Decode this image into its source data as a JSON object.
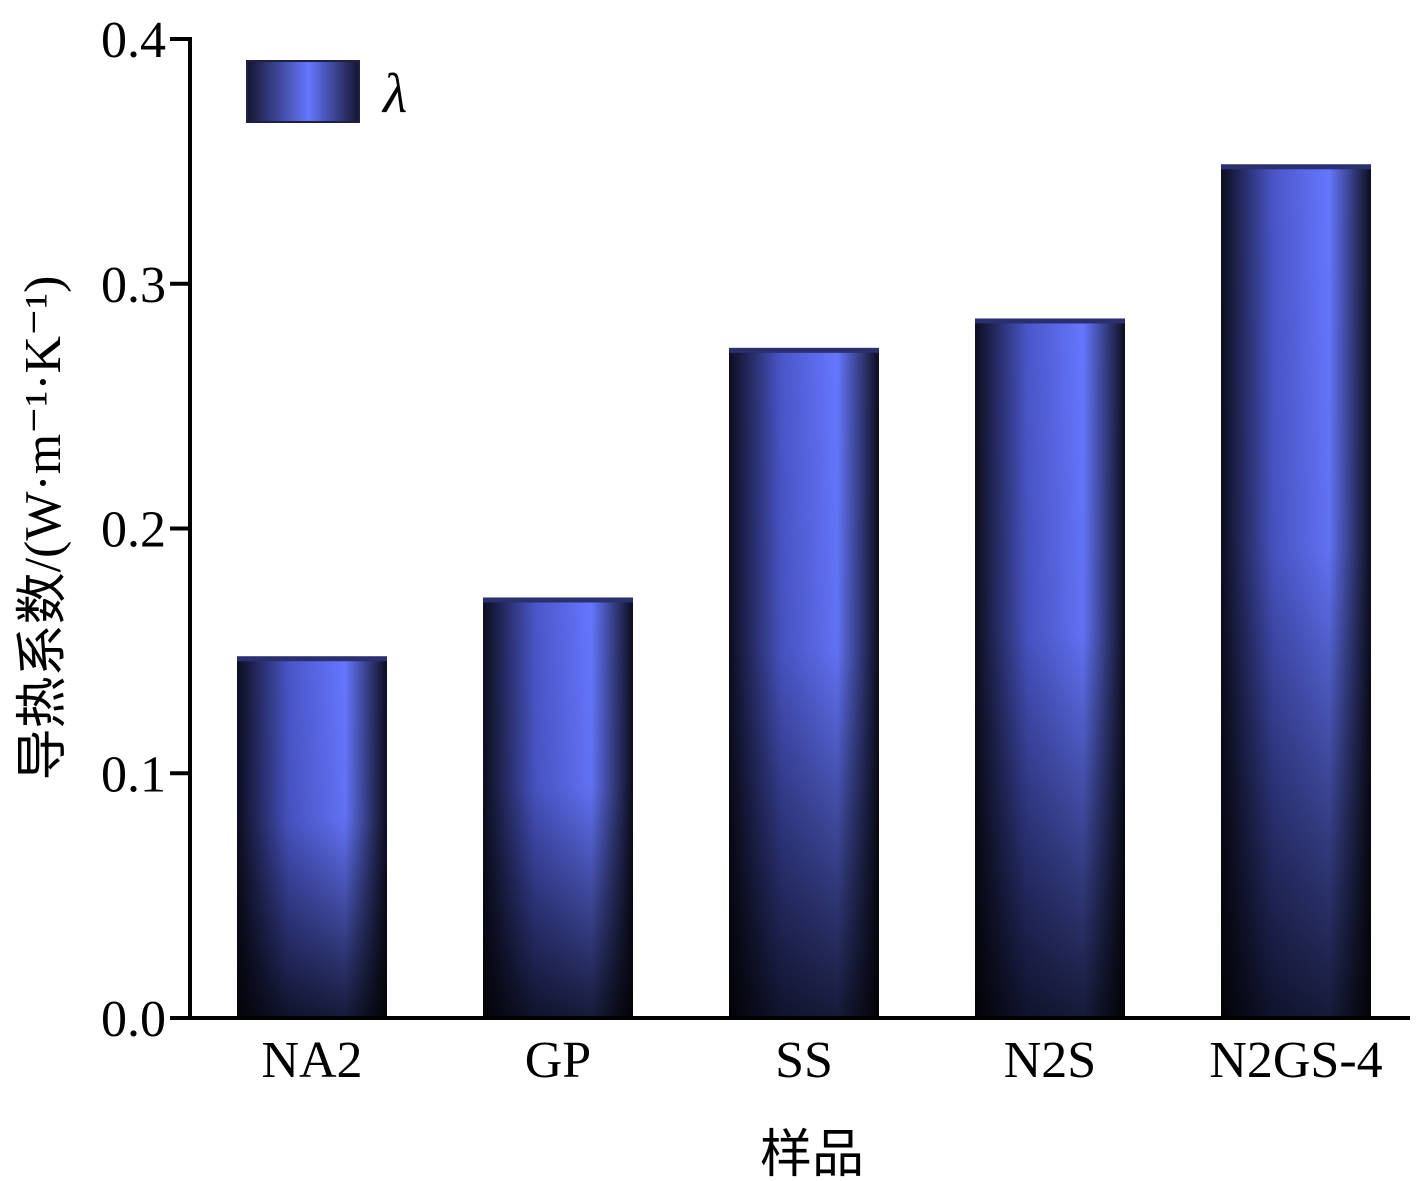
{
  "chart_data": {
    "type": "bar",
    "categories": [
      "NA2",
      "GP",
      "SS",
      "N2S",
      "N2GS-4"
    ],
    "series": [
      {
        "name": "λ",
        "values": [
          0.147,
          0.171,
          0.273,
          0.285,
          0.348
        ]
      }
    ],
    "title": "",
    "xlabel": "样品",
    "ylabel": "导热系数/(W·m⁻¹·K⁻¹)",
    "ylim": [
      0.0,
      0.4
    ],
    "yticks": [
      0.0,
      0.1,
      0.2,
      0.3,
      0.4
    ],
    "ytick_labels": [
      "0.0",
      "0.1",
      "0.2",
      "0.3",
      "0.4"
    ],
    "grid": false,
    "legend_position": "top-left",
    "colors": {
      "bar_light": "#6677ff",
      "bar_dark": "#151530",
      "axis": "#000000"
    }
  }
}
